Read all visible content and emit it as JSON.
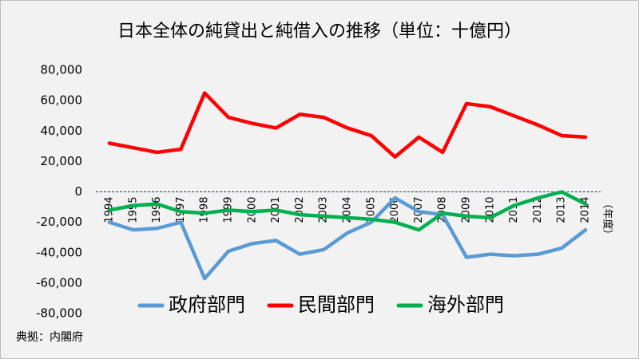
{
  "chart_data": {
    "type": "line",
    "title": "日本全体の純貸出と純借入の推移（単位：十億円）",
    "x_label": "（年度）",
    "source": "典拠：内閣府",
    "categories": [
      "1994",
      "1995",
      "1996",
      "1997",
      "1998",
      "1999",
      "2000",
      "2001",
      "2002",
      "2003",
      "2004",
      "2005",
      "2006",
      "2007",
      "2008",
      "2009",
      "2010",
      "2011",
      "2012",
      "2013",
      "2014"
    ],
    "series": [
      {
        "name": "政府部門",
        "color": "#5b9bd5",
        "values": [
          -20000,
          -25000,
          -24000,
          -20000,
          -57000,
          -39000,
          -34000,
          -32000,
          -41000,
          -38000,
          -27000,
          -20000,
          -4000,
          -13000,
          -15000,
          -43000,
          -41000,
          -42000,
          -41000,
          -37000,
          -25000
        ]
      },
      {
        "name": "民間部門",
        "color": "#ff0000",
        "values": [
          32000,
          29000,
          26000,
          28000,
          65000,
          49000,
          45000,
          42000,
          51000,
          49000,
          42000,
          37000,
          23000,
          36000,
          26000,
          58000,
          56000,
          50000,
          44000,
          37000,
          36000
        ]
      },
      {
        "name": "海外部門",
        "color": "#00b050",
        "values": [
          -12000,
          -9000,
          -8000,
          -13000,
          -14000,
          -12000,
          -13000,
          -12000,
          -15000,
          -16000,
          -17000,
          -18000,
          -20000,
          -25000,
          -14000,
          -16000,
          -17000,
          -9000,
          -4000,
          0,
          -8000
        ]
      }
    ],
    "ylim": [
      -80000,
      80000
    ],
    "yticks": [
      {
        "value": -80000,
        "label": "-80,000"
      },
      {
        "value": -60000,
        "label": "-60,000"
      },
      {
        "value": -40000,
        "label": "-40,000"
      },
      {
        "value": -20000,
        "label": "-20,000"
      },
      0,
      {
        "value": 20000,
        "label": "20,000"
      },
      {
        "value": 40000,
        "label": "40,000"
      },
      {
        "value": 60000,
        "label": "60,000"
      },
      {
        "value": 80000,
        "label": "80,000"
      }
    ],
    "zero_line": true,
    "legend": "bottom"
  }
}
